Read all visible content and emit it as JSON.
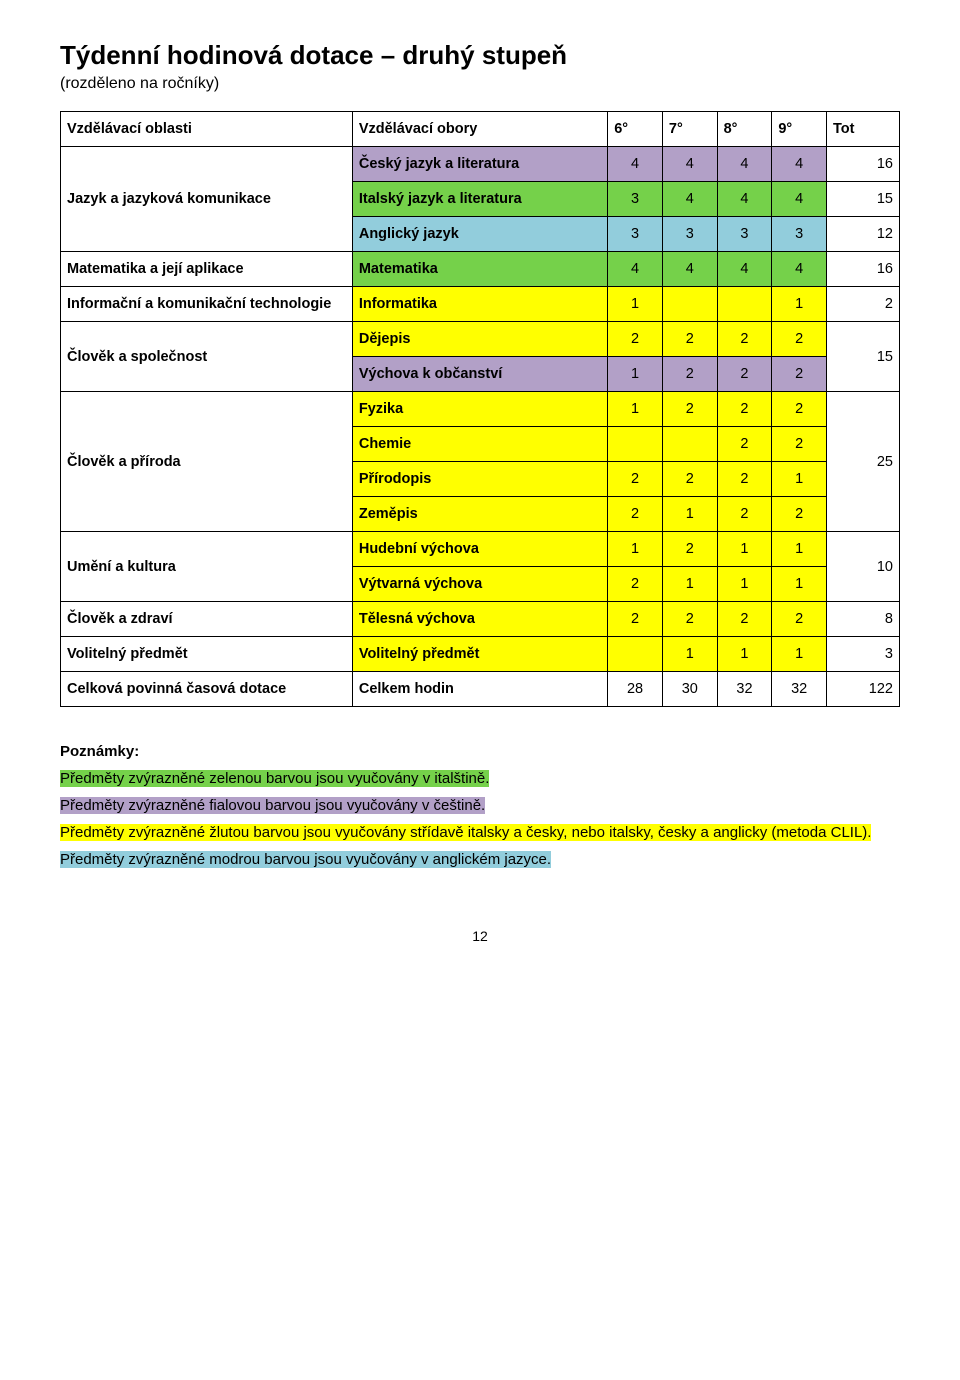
{
  "title": "Týdenní hodinová dotace – druhý stupeň",
  "subtitle": "(rozděleno na ročníky)",
  "header": {
    "area": "Vzdělávací oblasti",
    "subject": "Vzdělávací obory",
    "g6": "6°",
    "g7": "7°",
    "g8": "8°",
    "g9": "9°",
    "tot": "Tot"
  },
  "rows": [
    {
      "type": "row",
      "area": "",
      "subject": "Český jazyk a literatura",
      "cls": "p",
      "v": [
        "4",
        "4",
        "4",
        "4"
      ],
      "tot": "16"
    },
    {
      "type": "row",
      "area": "Jazyk a jazyková komunikace",
      "subject": "Italský jazyk a literatura",
      "cls": "g",
      "v": [
        "3",
        "4",
        "4",
        "4"
      ],
      "tot": "15",
      "area_start": true
    },
    {
      "type": "row",
      "area": "",
      "subject": "Anglický jazyk",
      "cls": "b",
      "v": [
        "3",
        "3",
        "3",
        "3"
      ],
      "tot": "12"
    },
    {
      "type": "row",
      "area": "Matematika  a její aplikace",
      "subject": "Matematika",
      "cls": "g",
      "v": [
        "4",
        "4",
        "4",
        "4"
      ],
      "tot": "16",
      "single": true
    },
    {
      "type": "row",
      "area": "Informační a komunikační technologie",
      "subject": "Informatika",
      "cls": "y",
      "v": [
        "1",
        "",
        "",
        "1"
      ],
      "tot": "2",
      "single": true
    },
    {
      "type": "group",
      "area": "Člověk a společnost",
      "rows": [
        {
          "subject": "Dějepis",
          "cls": "y",
          "v": [
            "2",
            "2",
            "2",
            "2"
          ],
          "tot": ""
        },
        {
          "subject": "Výchova k občanství",
          "cls": "p",
          "v": [
            "1",
            "2",
            "2",
            "2"
          ],
          "tot": "15"
        }
      ]
    },
    {
      "type": "group",
      "area": "Člověk a příroda",
      "rows": [
        {
          "subject": "Fyzika",
          "cls": "y",
          "v": [
            "1",
            "2",
            "2",
            "2"
          ],
          "tot": ""
        },
        {
          "subject": "Chemie",
          "cls": "y",
          "v": [
            "",
            "",
            "2",
            "2"
          ],
          "tot": ""
        },
        {
          "subject": "Přírodopis",
          "cls": "y",
          "v": [
            "2",
            "2",
            "2",
            "1"
          ],
          "tot": "25",
          "tot_mid": true
        },
        {
          "subject": "Zeměpis",
          "cls": "y",
          "v": [
            "2",
            "1",
            "2",
            "2"
          ],
          "tot": ""
        }
      ]
    },
    {
      "type": "group",
      "area": "Umění a kultura",
      "rows": [
        {
          "subject": "Hudební výchova",
          "cls": "y",
          "v": [
            "1",
            "2",
            "1",
            "1"
          ],
          "tot": ""
        },
        {
          "subject": "Výtvarná výchova",
          "cls": "y",
          "v": [
            "2",
            "1",
            "1",
            "1"
          ],
          "tot": "10"
        }
      ]
    },
    {
      "type": "row",
      "area": "Člověk a zdraví",
      "subject": "Tělesná výchova",
      "cls": "y",
      "v": [
        "2",
        "2",
        "2",
        "2"
      ],
      "tot": "8",
      "single": true
    },
    {
      "type": "row",
      "area": "Volitelný předmět",
      "subject": "Volitelný předmět",
      "cls": "y",
      "v": [
        "",
        "1",
        "1",
        "1"
      ],
      "tot": "3",
      "single": true
    },
    {
      "type": "total",
      "area": "Celková povinná časová dotace",
      "subject": "Celkem hodin",
      "v": [
        "28",
        "30",
        "32",
        "32"
      ],
      "tot": "122"
    }
  ],
  "notes": {
    "label": "Poznámky:",
    "items": [
      {
        "cls": "hl-g",
        "text": "Předměty zvýrazněné zelenou barvou jsou vyučovány v italštině."
      },
      {
        "cls": "hl-p",
        "text": "Předměty zvýrazněné fialovou barvou jsou vyučovány v češtině."
      },
      {
        "cls": "hl-y",
        "text": "Předměty zvýrazněné žlutou barvou jsou vyučovány střídavě italsky a česky, nebo italsky, česky a anglicky (metoda CLIL)."
      },
      {
        "cls": "hl-b",
        "text": "Předměty zvýrazněné modrou barvou jsou vyučovány v anglickém jazyce."
      }
    ]
  },
  "page_number": "12",
  "colors": {
    "green": "#75d14a",
    "purple": "#b2a0c7",
    "yellow": "#ffff00",
    "blue": "#92cddc",
    "border": "#000000"
  }
}
